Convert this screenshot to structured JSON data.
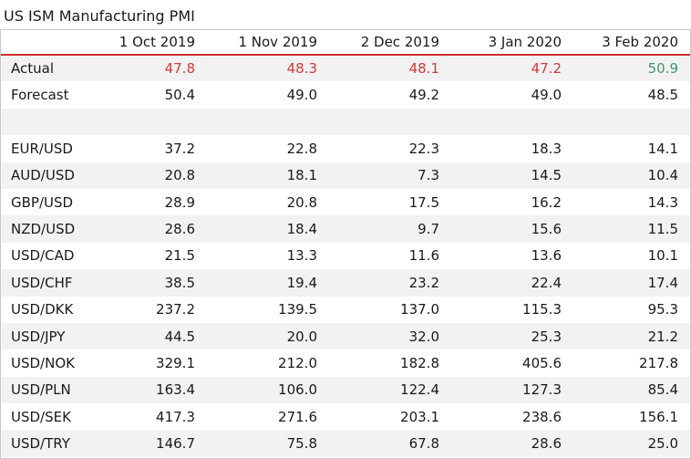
{
  "title": "US ISM Manufacturing PMI",
  "colors": {
    "header_rule": "#d42c2c",
    "down": "#d43a3a",
    "up": "#3f9a6a",
    "stripe": "#f2f2f2"
  },
  "chart_data": {
    "type": "table",
    "title": "US ISM Manufacturing PMI",
    "columns": [
      "",
      "1 Oct 2019",
      "1 Nov 2019",
      "2 Dec 2019",
      "3 Jan 2020",
      "3 Feb 2020"
    ],
    "rows": [
      {
        "label": "Actual",
        "values": [
          "47.8",
          "48.3",
          "48.1",
          "47.2",
          "50.9"
        ],
        "colors": [
          "down",
          "down",
          "down",
          "down",
          "up"
        ]
      },
      {
        "label": "Forecast",
        "values": [
          "50.4",
          "49.0",
          "49.2",
          "49.0",
          "48.5"
        ]
      },
      {
        "label": "",
        "values": [
          "",
          "",
          "",
          "",
          ""
        ]
      },
      {
        "label": "EUR/USD",
        "values": [
          "37.2",
          "22.8",
          "22.3",
          "18.3",
          "14.1"
        ]
      },
      {
        "label": "AUD/USD",
        "values": [
          "20.8",
          "18.1",
          "7.3",
          "14.5",
          "10.4"
        ]
      },
      {
        "label": "GBP/USD",
        "values": [
          "28.9",
          "20.8",
          "17.5",
          "16.2",
          "14.3"
        ]
      },
      {
        "label": "NZD/USD",
        "values": [
          "28.6",
          "18.4",
          "9.7",
          "15.6",
          "11.5"
        ]
      },
      {
        "label": "USD/CAD",
        "values": [
          "21.5",
          "13.3",
          "11.6",
          "13.6",
          "10.1"
        ]
      },
      {
        "label": "USD/CHF",
        "values": [
          "38.5",
          "19.4",
          "23.2",
          "22.4",
          "17.4"
        ]
      },
      {
        "label": "USD/DKK",
        "values": [
          "237.2",
          "139.5",
          "137.0",
          "115.3",
          "95.3"
        ]
      },
      {
        "label": "USD/JPY",
        "values": [
          "44.5",
          "20.0",
          "32.0",
          "25.3",
          "21.2"
        ]
      },
      {
        "label": "USD/NOK",
        "values": [
          "329.1",
          "212.0",
          "182.8",
          "405.6",
          "217.8"
        ]
      },
      {
        "label": "USD/PLN",
        "values": [
          "163.4",
          "106.0",
          "122.4",
          "127.3",
          "85.4"
        ]
      },
      {
        "label": "USD/SEK",
        "values": [
          "417.3",
          "271.6",
          "203.1",
          "238.6",
          "156.1"
        ]
      },
      {
        "label": "USD/TRY",
        "values": [
          "146.7",
          "75.8",
          "67.8",
          "28.6",
          "25.0"
        ]
      }
    ]
  }
}
